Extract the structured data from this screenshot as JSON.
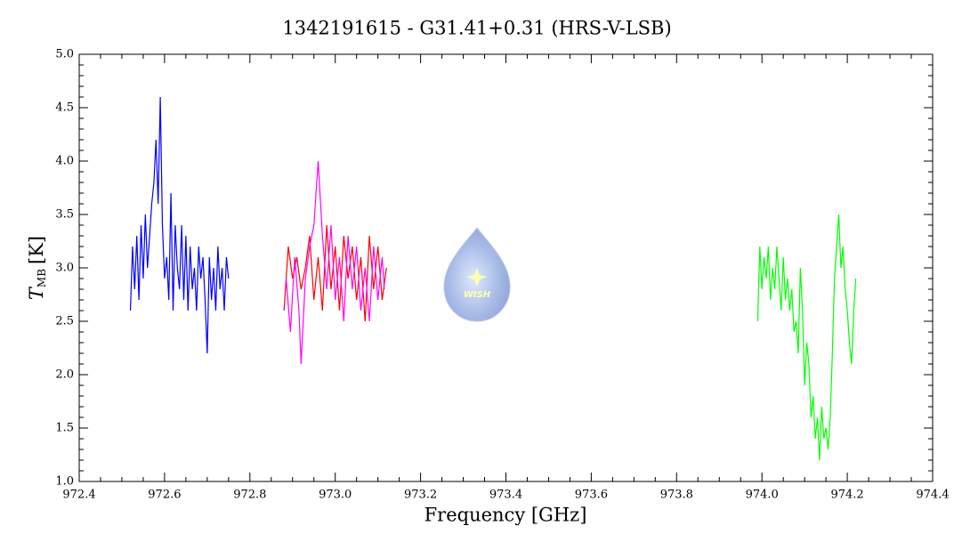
{
  "chart_data": {
    "type": "line",
    "title": "1342191615 - G31.41+0.31 (HRS-V-LSB)",
    "xlabel": "Frequency [GHz]",
    "ylabel": "T",
    "ylabel_subscript": "MB",
    "ylabel_unit": "[K]",
    "logo_text": "WISH",
    "xlim": [
      972.4,
      974.4
    ],
    "xticks": [
      972.4,
      972.6,
      972.8,
      {
        "value": 973,
        "label": "973.0"
      },
      973.2,
      973.4,
      973.6,
      973.8,
      {
        "value": 974,
        "label": "974.0"
      },
      974.2,
      974.4
    ],
    "ylim": [
      1,
      5
    ],
    "yticks": [
      {
        "value": 1,
        "label": "1.0"
      },
      1.5,
      {
        "value": 2,
        "label": "2.0"
      },
      2.5,
      {
        "value": 3,
        "label": "3.0"
      },
      3.5,
      {
        "value": 4,
        "label": "4.0"
      },
      4.5,
      {
        "value": 5,
        "label": "5.0"
      }
    ],
    "x_minor_divisions": 4,
    "y_minor_divisions": 5,
    "series": [
      {
        "color": "#0000ff",
        "x": [
          972.52,
          972.525,
          972.53,
          972.535,
          972.54,
          972.545,
          972.55,
          972.555,
          972.56,
          972.565,
          972.57,
          972.575,
          972.58,
          972.585,
          972.59,
          972.595,
          972.6,
          972.605,
          972.61,
          972.615,
          972.62,
          972.625,
          972.63,
          972.635,
          972.64,
          972.645,
          972.65,
          972.655,
          972.66,
          972.665,
          972.67,
          972.675,
          972.68,
          972.685,
          972.69,
          972.695,
          972.7,
          972.705,
          972.71,
          972.715,
          972.72,
          972.725,
          972.73,
          972.735,
          972.74,
          972.745,
          972.75
        ],
        "values": [
          2.6,
          3.2,
          2.8,
          3.3,
          2.7,
          3.4,
          2.9,
          3.5,
          3.0,
          3.3,
          3.6,
          3.8,
          4.2,
          3.6,
          4.6,
          3.4,
          2.9,
          3.1,
          2.7,
          3.7,
          2.6,
          3.4,
          3.0,
          2.8,
          3.4,
          2.7,
          3.3,
          2.6,
          3.2,
          2.8,
          3.0,
          2.6,
          3.2,
          2.9,
          3.1,
          2.7,
          2.2,
          3.1,
          2.7,
          3.0,
          2.6,
          3.2,
          2.8,
          3.0,
          2.6,
          3.1,
          2.9
        ]
      },
      {
        "color": "#ff0000",
        "x": [
          972.88,
          972.89,
          972.9,
          972.91,
          972.92,
          972.93,
          972.94,
          972.95,
          972.96,
          972.97,
          972.98,
          972.99,
          973.0,
          973.01,
          973.02,
          973.03,
          973.04,
          973.05,
          973.06,
          973.07,
          973.08,
          973.09,
          973.1,
          973.11,
          973.12
        ],
        "values": [
          2.6,
          3.2,
          2.9,
          3.1,
          2.8,
          3.0,
          3.3,
          2.7,
          3.1,
          2.6,
          3.4,
          2.8,
          3.2,
          2.6,
          3.3,
          2.9,
          3.2,
          2.7,
          3.1,
          2.5,
          3.3,
          2.8,
          3.2,
          2.7,
          3.0
        ]
      },
      {
        "color": "#ff00ff",
        "x": [
          972.885,
          972.895,
          972.905,
          972.915,
          972.92,
          972.93,
          972.94,
          972.95,
          972.96,
          972.97,
          972.98,
          972.99,
          973.0,
          973.01,
          973.02,
          973.03,
          973.04,
          973.05,
          973.06,
          973.07,
          973.08,
          973.09,
          973.1,
          973.11,
          973.115
        ],
        "values": [
          2.9,
          2.4,
          3.1,
          2.6,
          2.1,
          2.9,
          3.2,
          3.4,
          4.0,
          3.3,
          2.8,
          3.4,
          2.7,
          3.1,
          2.5,
          3.3,
          2.8,
          3.2,
          2.6,
          3.0,
          2.5,
          3.2,
          2.7,
          3.1,
          2.8
        ]
      },
      {
        "color": "#00ff00",
        "x": [
          973.99,
          973.995,
          974.0,
          974.005,
          974.01,
          974.015,
          974.02,
          974.025,
          974.03,
          974.035,
          974.04,
          974.045,
          974.05,
          974.055,
          974.06,
          974.065,
          974.07,
          974.075,
          974.08,
          974.085,
          974.09,
          974.095,
          974.1,
          974.105,
          974.11,
          974.115,
          974.12,
          974.125,
          974.13,
          974.135,
          974.14,
          974.145,
          974.15,
          974.155,
          974.16,
          974.165,
          974.17,
          974.175,
          974.18,
          974.185,
          974.19,
          974.195,
          974.2,
          974.205,
          974.21,
          974.215,
          974.22
        ],
        "values": [
          2.5,
          3.2,
          2.8,
          3.1,
          2.9,
          3.2,
          2.7,
          3.0,
          2.8,
          3.2,
          2.9,
          2.6,
          3.1,
          2.7,
          2.9,
          2.6,
          2.8,
          2.4,
          2.5,
          2.2,
          3.0,
          2.6,
          1.9,
          2.3,
          2.1,
          1.6,
          1.8,
          1.4,
          1.6,
          1.2,
          1.7,
          1.4,
          1.5,
          1.3,
          1.6,
          2.2,
          2.9,
          3.2,
          3.5,
          3.0,
          3.2,
          2.8,
          2.6,
          2.3,
          2.1,
          2.6,
          2.9
        ]
      }
    ]
  }
}
